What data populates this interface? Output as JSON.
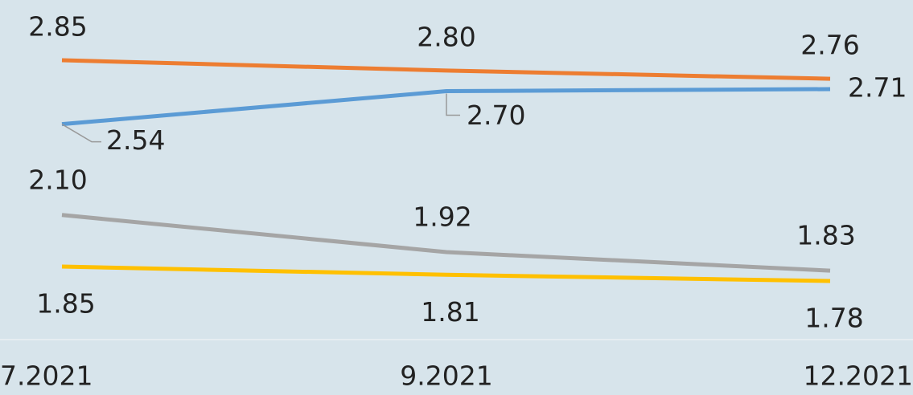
{
  "chart_data": {
    "type": "line",
    "categories": [
      "7.2021",
      "9.2021",
      "12.2021"
    ],
    "series": [
      {
        "color": "#ed7d31",
        "values": [
          2.85,
          2.8,
          2.76
        ],
        "value_labels": [
          "2.85",
          "2.80",
          "2.76"
        ]
      },
      {
        "color": "#5b9bd5",
        "values": [
          2.54,
          2.7,
          2.71
        ],
        "value_labels": [
          "2.54",
          "2.70",
          "2.71"
        ]
      },
      {
        "color": "#a5a5a5",
        "values": [
          2.1,
          1.92,
          1.83
        ],
        "value_labels": [
          "2.10",
          "1.92",
          "1.83"
        ]
      },
      {
        "color": "#ffc000",
        "values": [
          1.85,
          1.81,
          1.78
        ],
        "value_labels": [
          "1.85",
          "1.81",
          "1.78"
        ]
      }
    ]
  }
}
